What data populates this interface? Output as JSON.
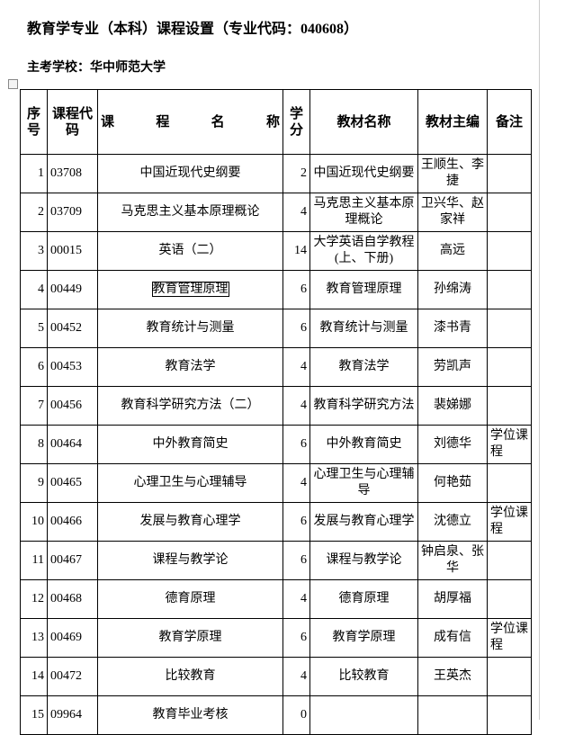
{
  "header": {
    "title": "教育学专业（本科）课程设置（专业代码：040608）",
    "subtitle": "主考学校：华中师范大学"
  },
  "table": {
    "columns": [
      "序号",
      "课程代码",
      "课　程　名　称",
      "学分",
      "教材名称",
      "教材主编",
      "备注"
    ],
    "rows": [
      [
        "1",
        "03708",
        "中国近现代史纲要",
        "2",
        "中国近现代史纲要",
        "王顺生、李　捷",
        null
      ],
      [
        "2",
        "03709",
        "马克思主义基本原理概论",
        "4",
        "马克思主义基本原理概论",
        "卫兴华、赵家祥",
        null
      ],
      [
        "3",
        "00015",
        "英语（二）",
        "14",
        "大学英语自学教程(上、下册)",
        "高远",
        null
      ],
      [
        "4",
        "00449",
        "教育管理原理",
        "6",
        "教育管理原理",
        "孙绵涛",
        null
      ],
      [
        "5",
        "00452",
        "教育统计与测量",
        "6",
        "教育统计与测量",
        "漆书青",
        null
      ],
      [
        "6",
        "00453",
        "教育法学",
        "4",
        "教育法学",
        "劳凯声",
        null
      ],
      [
        "7",
        "00456",
        "教育科学研究方法（二）",
        "4",
        "教育科学研究方法",
        "裴娣娜",
        null
      ],
      [
        "8",
        "00464",
        "中外教育简史",
        "6",
        "中外教育简史",
        "刘德华",
        "学位课程"
      ],
      [
        "9",
        "00465",
        "心理卫生与心理辅导",
        "4",
        "心理卫生与心理辅导",
        "何艳茹",
        null
      ],
      [
        "10",
        "00466",
        "发展与教育心理学",
        "6",
        "发展与教育心理学",
        "沈德立",
        "学位课程"
      ],
      [
        "11",
        "00467",
        "课程与教学论",
        "6",
        "课程与教学论",
        "钟启泉、张华",
        null
      ],
      [
        "12",
        "00468",
        "德育原理",
        "4",
        "德育原理",
        "胡厚福",
        null
      ],
      [
        "13",
        "00469",
        "教育学原理",
        "6",
        "教育学原理",
        "成有信",
        "学位课程"
      ],
      [
        "14",
        "00472",
        "比较教育",
        "4",
        "比较教育",
        "王英杰",
        null
      ],
      [
        "15",
        "09964",
        "教育毕业考核",
        "0",
        null,
        null,
        null
      ]
    ]
  }
}
